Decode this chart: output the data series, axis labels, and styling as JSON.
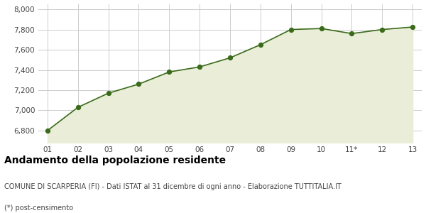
{
  "x_labels": [
    "01",
    "02",
    "03",
    "04",
    "05",
    "06",
    "07",
    "08",
    "09",
    "10",
    "11*",
    "12",
    "13"
  ],
  "x_values": [
    1,
    2,
    3,
    4,
    5,
    6,
    7,
    8,
    9,
    10,
    11,
    12,
    13
  ],
  "y_values": [
    6800,
    7030,
    7170,
    7260,
    7380,
    7430,
    7520,
    7650,
    7800,
    7810,
    7760,
    7800,
    7825
  ],
  "line_color": "#3a6b1a",
  "fill_color": "#eaedd8",
  "marker_color": "#3a6b1a",
  "bg_color": "#ffffff",
  "plot_bg_color": "#ffffff",
  "grid_color": "#cccccc",
  "ylim": [
    6680,
    8050
  ],
  "yticks": [
    6800,
    7000,
    7200,
    7400,
    7600,
    7800,
    8000
  ],
  "title": "Andamento della popolazione residente",
  "subtitle": "COMUNE DI SCARPERIA (FI) - Dati ISTAT al 31 dicembre di ogni anno - Elaborazione TUTTITALIA.IT",
  "footnote": "(*) post-censimento",
  "title_fontsize": 10,
  "subtitle_fontsize": 7,
  "footnote_fontsize": 7,
  "tick_fontsize": 7.5
}
